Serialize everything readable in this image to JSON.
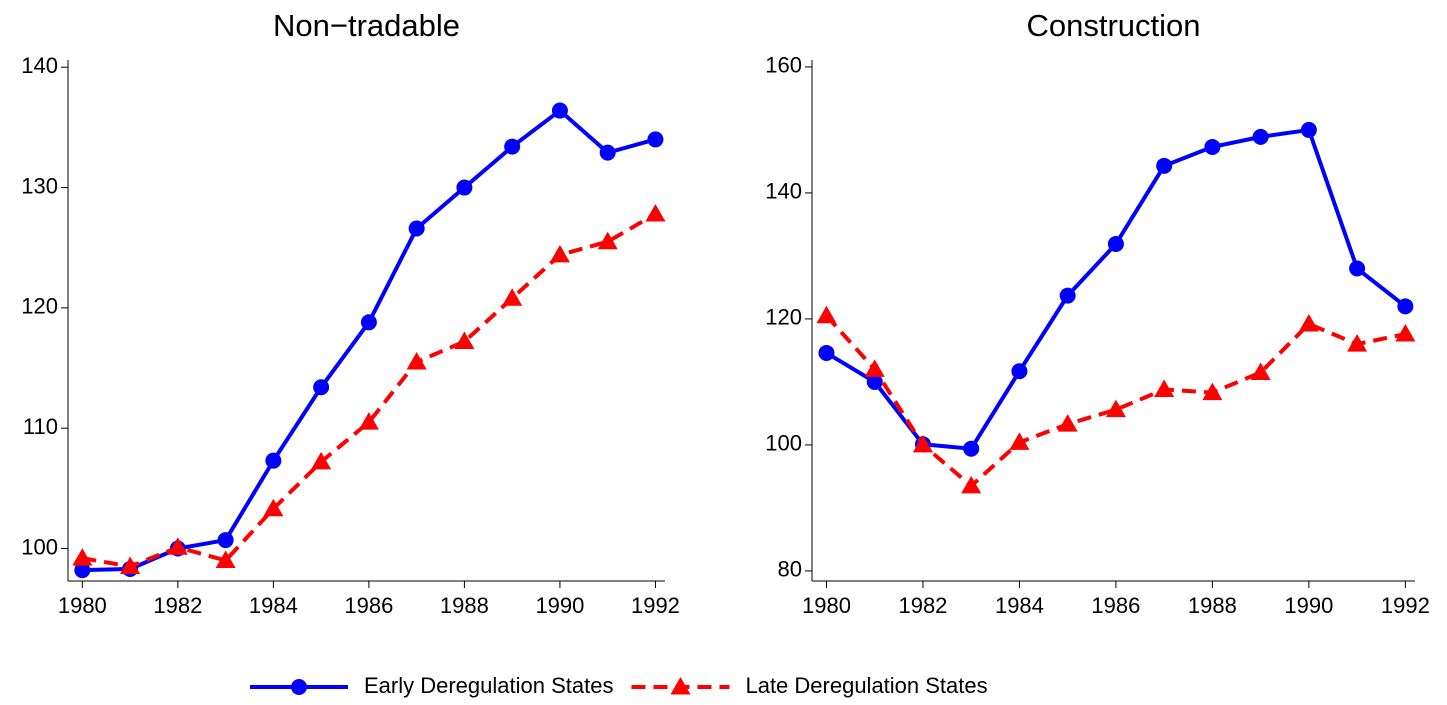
{
  "chart_data": [
    {
      "type": "line",
      "title": "Non−tradable",
      "x": [
        1980,
        1981,
        1982,
        1983,
        1984,
        1985,
        1986,
        1987,
        1988,
        1989,
        1990,
        1991,
        1992
      ],
      "xlim": [
        1979.7,
        1992.2
      ],
      "xticks": [
        1980,
        1982,
        1984,
        1986,
        1988,
        1990,
        1992
      ],
      "ylim": [
        97.3,
        140.6
      ],
      "yticks": [
        100,
        110,
        120,
        130,
        140
      ],
      "series": [
        {
          "name": "Early Deregulation States",
          "color": "#0000ff",
          "marker": "circle",
          "dash": false,
          "values": [
            98.2,
            98.3,
            100.0,
            100.7,
            107.3,
            113.4,
            118.8,
            126.6,
            130.0,
            133.4,
            136.4,
            132.9,
            134.0
          ]
        },
        {
          "name": "Late Deregulation States",
          "color": "#ff0000",
          "marker": "triangle",
          "dash": true,
          "values": [
            99.2,
            98.5,
            100.1,
            99.0,
            103.3,
            107.2,
            110.5,
            115.5,
            117.2,
            120.8,
            124.4,
            125.5,
            127.8
          ]
        }
      ]
    },
    {
      "type": "line",
      "title": "Construction",
      "x": [
        1980,
        1981,
        1982,
        1983,
        1984,
        1985,
        1986,
        1987,
        1988,
        1989,
        1990,
        1991,
        1992
      ],
      "xlim": [
        1979.7,
        1992.2
      ],
      "xticks": [
        1980,
        1982,
        1984,
        1986,
        1988,
        1990,
        1992
      ],
      "ylim": [
        78.4,
        161.1
      ],
      "yticks": [
        80,
        100,
        120,
        140,
        160
      ],
      "series": [
        {
          "name": "Early Deregulation States",
          "color": "#0000ff",
          "marker": "circle",
          "dash": false,
          "values": [
            114.6,
            110.0,
            100.1,
            99.4,
            111.7,
            123.7,
            131.9,
            144.3,
            147.3,
            148.9,
            150.0,
            128.0,
            122.0
          ]
        },
        {
          "name": "Late Deregulation States",
          "color": "#ff0000",
          "marker": "triangle",
          "dash": true,
          "values": [
            120.5,
            112.0,
            100.0,
            93.5,
            100.4,
            103.3,
            105.6,
            108.8,
            108.3,
            111.5,
            119.2,
            116.0,
            117.6
          ]
        }
      ]
    }
  ]
}
